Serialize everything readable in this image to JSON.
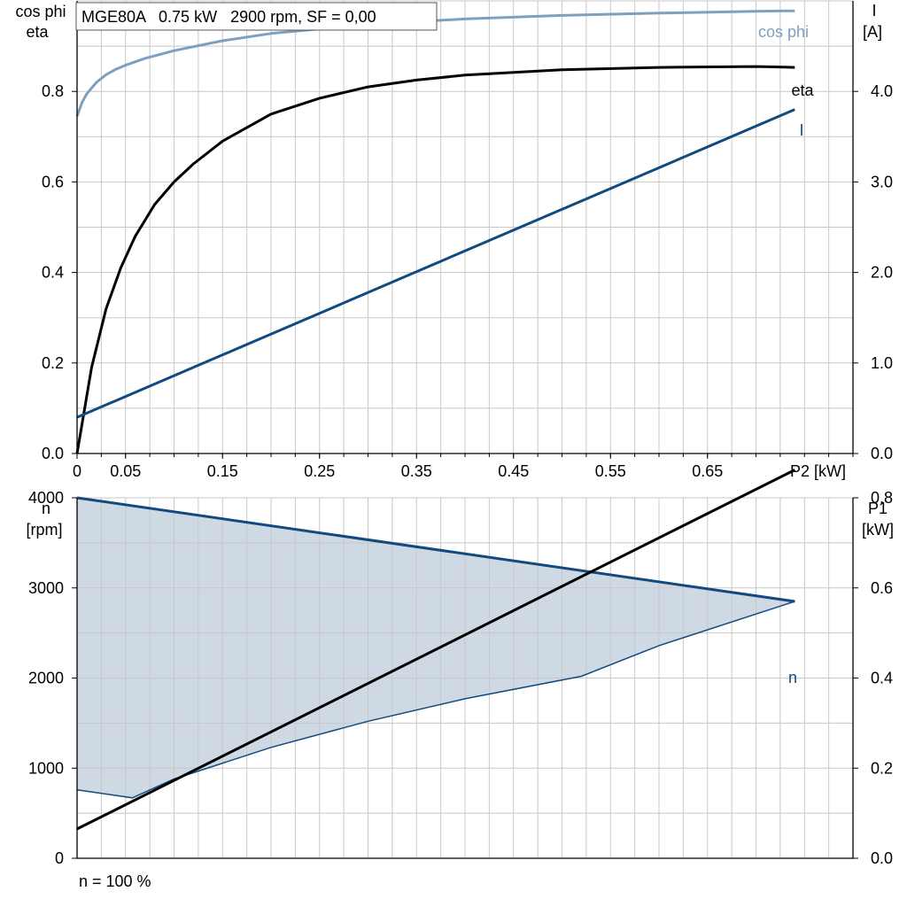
{
  "colors": {
    "cosphi": "#7f9fbf",
    "eta": "#000000",
    "current": "#124a80",
    "speed": "#124a80",
    "power_input": "#000000",
    "speed_band_fill": "#cfd9e4",
    "grid": "#c8c8c8"
  },
  "chart_data": [
    {
      "type": "line",
      "title": "MGE80A   0.75 kW   2900 rpm, SF = 0,00",
      "xlabel": "P2 [kW]",
      "ylabel_left": [
        "cos phi",
        "eta"
      ],
      "ylabel_right": [
        "I",
        "[A]"
      ],
      "xlim": [
        0,
        0.8
      ],
      "ylim_left": [
        0,
        1.0
      ],
      "ylim_right": [
        0,
        5.0
      ],
      "x_ticks": [
        0,
        0.05,
        0.15,
        0.25,
        0.35,
        0.45,
        0.55,
        0.65
      ],
      "x_tick_labels": [
        "0",
        "0.05",
        "0.15",
        "0.25",
        "0.35",
        "0.45",
        "0.55",
        "0.65"
      ],
      "y_left_ticks": [
        0,
        0.2,
        0.4,
        0.6,
        0.8
      ],
      "y_left_tick_labels": [
        "0.0",
        "0.2",
        "0.4",
        "0.6",
        "0.8"
      ],
      "y_right_ticks": [
        0,
        1,
        2,
        3,
        4
      ],
      "y_right_tick_labels": [
        "0.0",
        "1.0",
        "2.0",
        "3.0",
        "4.0"
      ],
      "grid": true,
      "series": [
        {
          "name": "cos phi",
          "axis": "left",
          "x": [
            0,
            0.005,
            0.01,
            0.02,
            0.03,
            0.04,
            0.05,
            0.07,
            0.1,
            0.15,
            0.2,
            0.3,
            0.4,
            0.5,
            0.6,
            0.7,
            0.74
          ],
          "y": [
            0.745,
            0.775,
            0.795,
            0.82,
            0.837,
            0.849,
            0.858,
            0.873,
            0.89,
            0.912,
            0.928,
            0.948,
            0.96,
            0.968,
            0.973,
            0.977,
            0.978
          ]
        },
        {
          "name": "eta",
          "axis": "left",
          "x": [
            0,
            0.015,
            0.03,
            0.045,
            0.06,
            0.08,
            0.1,
            0.12,
            0.15,
            0.2,
            0.25,
            0.3,
            0.35,
            0.4,
            0.5,
            0.6,
            0.7,
            0.74
          ],
          "y": [
            0,
            0.19,
            0.32,
            0.41,
            0.48,
            0.55,
            0.6,
            0.64,
            0.69,
            0.75,
            0.785,
            0.81,
            0.825,
            0.836,
            0.848,
            0.853,
            0.855,
            0.853
          ]
        },
        {
          "name": "I",
          "axis": "right",
          "x": [
            0,
            0.74
          ],
          "y": [
            0.4,
            3.8
          ]
        }
      ]
    },
    {
      "type": "line",
      "ylabel_left": [
        "n",
        "[rpm]"
      ],
      "ylabel_right": [
        "P1",
        "[kW]"
      ],
      "xlim": [
        0,
        0.8
      ],
      "ylim_left": [
        0,
        4000
      ],
      "ylim_right": [
        0,
        0.8
      ],
      "y_left_ticks": [
        0,
        1000,
        2000,
        3000,
        4000
      ],
      "y_left_tick_labels": [
        "0",
        "1000",
        "2000",
        "3000",
        "4000"
      ],
      "y_right_ticks": [
        0,
        0.2,
        0.4,
        0.6,
        0.8
      ],
      "y_right_tick_labels": [
        "0.0",
        "0.2",
        "0.4",
        "0.6",
        "0.8"
      ],
      "grid": true,
      "annotation": "n = 100 %",
      "series": [
        {
          "name": "n",
          "axis": "left",
          "role": "upper",
          "x": [
            0,
            0.74
          ],
          "y": [
            4000,
            2850
          ]
        },
        {
          "name": "",
          "axis": "left",
          "role": "lower",
          "x": [
            0,
            0.057,
            0.1,
            0.2,
            0.3,
            0.4,
            0.52,
            0.6,
            0.74
          ],
          "y": [
            760,
            670,
            880,
            1230,
            1520,
            1770,
            2020,
            2360,
            2850
          ]
        },
        {
          "name": "",
          "axis": "right",
          "role": "P1",
          "x": [
            0,
            0.74
          ],
          "y": [
            0.065,
            0.862
          ]
        }
      ]
    }
  ]
}
